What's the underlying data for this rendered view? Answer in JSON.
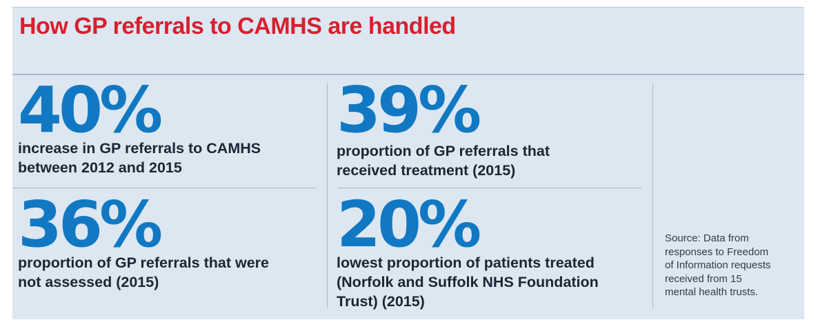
{
  "title": "How GP referrals to CAMHS are handled",
  "stats": [
    {
      "value": "40%",
      "label_line1": "increase in GP referrals to CAMHS",
      "label_line2": "between 2012 and 2015"
    },
    {
      "value": "39%",
      "label_line1": "proportion of GP referrals that",
      "label_line2": "received treatment (2015)"
    },
    {
      "value": "36%",
      "label_line1": "proportion of GP referrals that were",
      "label_line2": "not assessed (2015)"
    },
    {
      "value": "20%",
      "label_line1": "lowest proportion of patients treated",
      "label_line2": "(Norfolk and Suffolk NHS Foundation",
      "label_line3": "Trust) (2015)"
    }
  ],
  "source": {
    "line1": "Source: Data from",
    "line2": "responses to Freedom",
    "line3": "of Information requests",
    "line4": "received from 15",
    "line5": "mental health trusts."
  },
  "colors": {
    "accent_title": "#d7202e",
    "stat_blue": "#1178c3",
    "background": "#dce7f1"
  }
}
